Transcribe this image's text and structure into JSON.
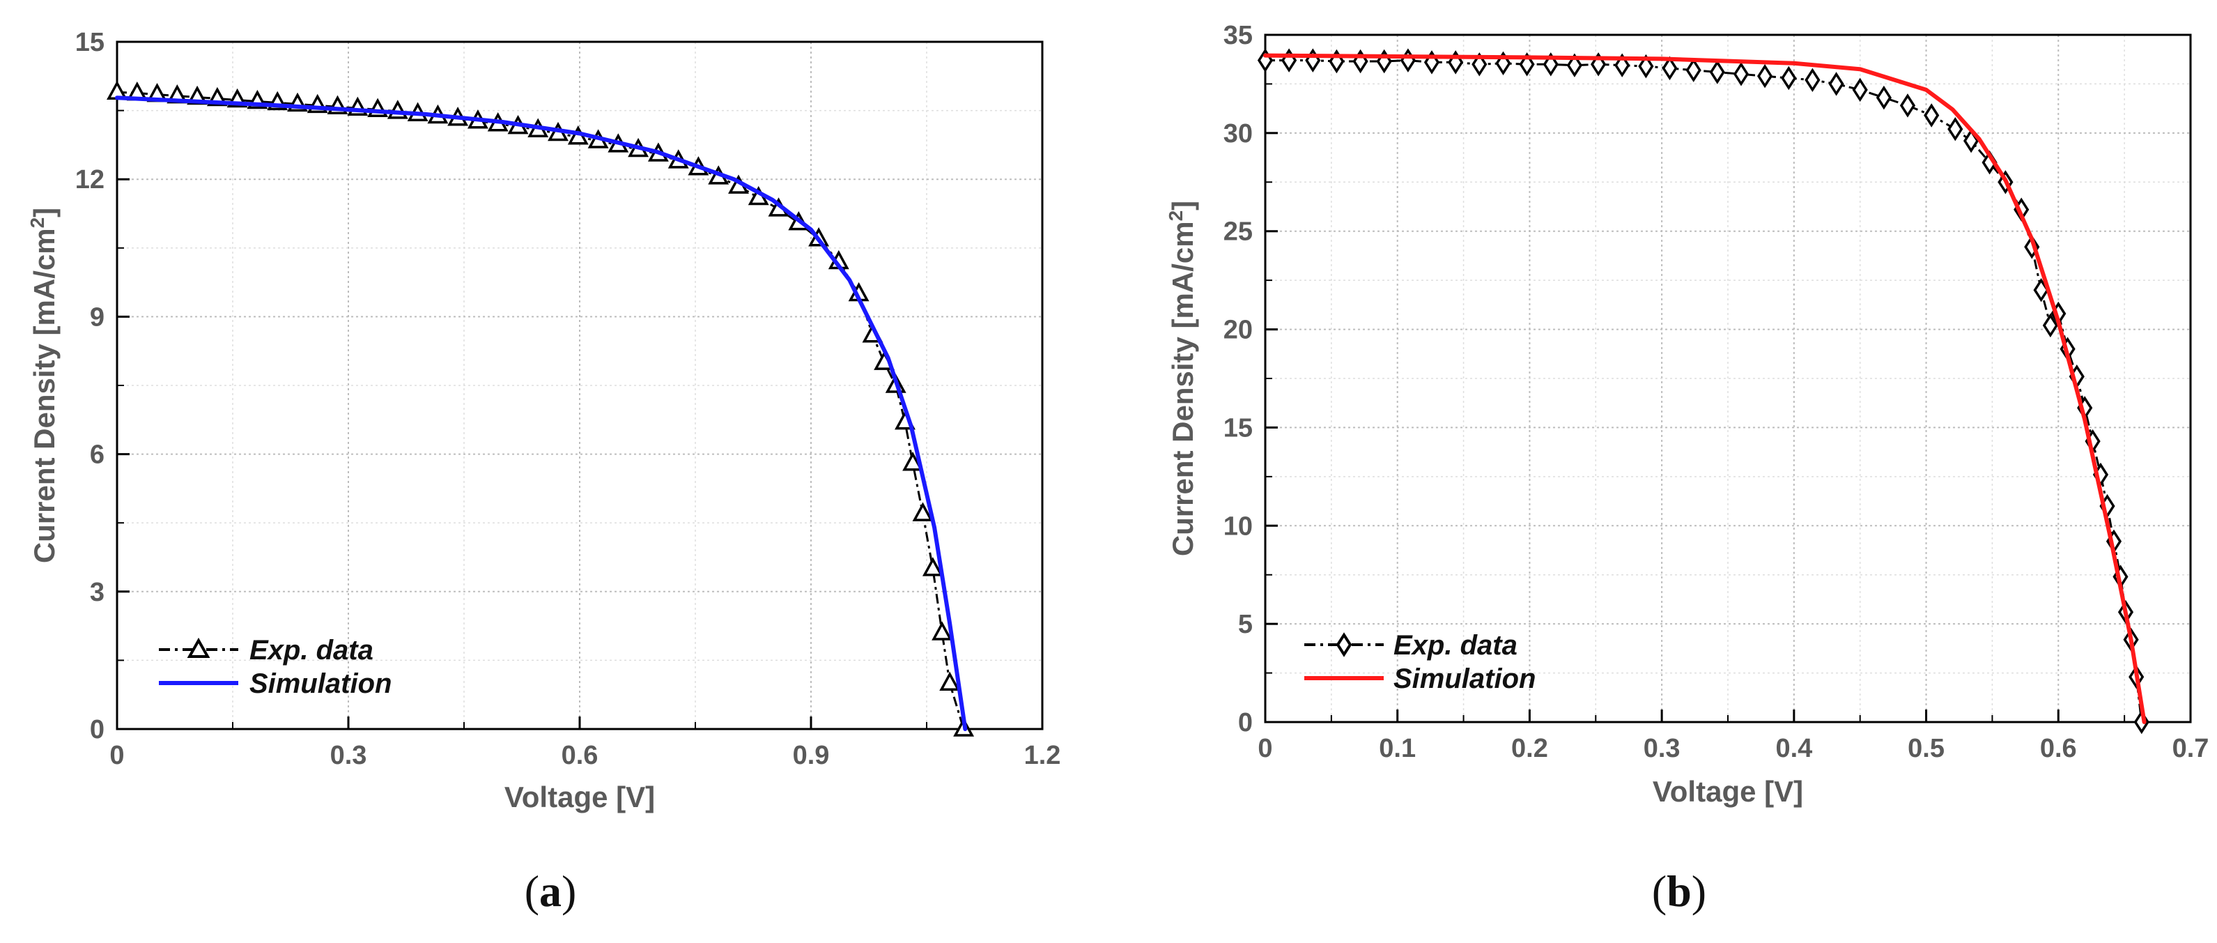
{
  "chart_data": [
    {
      "type": "line",
      "panel_label": [
        "(",
        "a",
        ")"
      ],
      "xlabel": "Voltage [V]",
      "ylabel": "Current Density [mA/cm",
      "ylabel_sup": "2",
      "ylabel_end": "]",
      "xlim": [
        0,
        1.2
      ],
      "ylim": [
        0,
        15
      ],
      "xticks": [
        "0",
        "0.3",
        "0.6",
        "0.9",
        "1.2"
      ],
      "yticks": [
        "0",
        "3",
        "6",
        "9",
        "12",
        "15"
      ],
      "grid": true,
      "legend_position": "bottom-left",
      "series": [
        {
          "name": "Exp. data",
          "style": "dash-dot with triangle markers",
          "color": "#000000",
          "marker": "triangle",
          "x": [
            0.0,
            0.026,
            0.052,
            0.078,
            0.104,
            0.13,
            0.156,
            0.182,
            0.208,
            0.234,
            0.26,
            0.286,
            0.312,
            0.338,
            0.364,
            0.39,
            0.416,
            0.442,
            0.468,
            0.494,
            0.52,
            0.546,
            0.572,
            0.598,
            0.624,
            0.65,
            0.676,
            0.702,
            0.728,
            0.754,
            0.78,
            0.806,
            0.832,
            0.858,
            0.884,
            0.91,
            0.936,
            0.962,
            0.98,
            0.995,
            1.01,
            1.022,
            1.032,
            1.045,
            1.058,
            1.07,
            1.08,
            1.098
          ],
          "y": [
            13.9,
            13.88,
            13.85,
            13.82,
            13.79,
            13.76,
            13.73,
            13.7,
            13.67,
            13.64,
            13.61,
            13.58,
            13.55,
            13.52,
            13.48,
            13.43,
            13.38,
            13.33,
            13.27,
            13.21,
            13.15,
            13.08,
            13.0,
            12.92,
            12.84,
            12.75,
            12.65,
            12.55,
            12.4,
            12.25,
            12.05,
            11.85,
            11.6,
            11.35,
            11.05,
            10.7,
            10.2,
            9.5,
            8.6,
            8.0,
            7.5,
            6.7,
            5.8,
            4.7,
            3.5,
            2.1,
            1.0,
            0.0
          ]
        },
        {
          "name": "Simulation",
          "style": "solid",
          "color": "#1a1aff",
          "x": [
            0.0,
            0.1,
            0.2,
            0.3,
            0.4,
            0.5,
            0.6,
            0.7,
            0.8,
            0.85,
            0.9,
            0.95,
            1.0,
            1.03,
            1.06,
            1.08,
            1.1
          ],
          "y": [
            13.78,
            13.7,
            13.62,
            13.52,
            13.42,
            13.25,
            13.0,
            12.6,
            12.0,
            11.55,
            10.9,
            9.8,
            8.1,
            6.6,
            4.4,
            2.3,
            0.0
          ]
        }
      ]
    },
    {
      "type": "line",
      "panel_label": [
        "(",
        "b",
        ")"
      ],
      "xlabel": "Voltage [V]",
      "ylabel": "Current Density [mA/cm",
      "ylabel_sup": "2",
      "ylabel_end": "]",
      "xlim": [
        0,
        0.7
      ],
      "ylim": [
        0,
        35
      ],
      "xticks": [
        "0",
        "0.1",
        "0.2",
        "0.3",
        "0.4",
        "0.5",
        "0.6",
        "0.7"
      ],
      "yticks": [
        "0",
        "5",
        "10",
        "15",
        "20",
        "25",
        "30",
        "35"
      ],
      "grid": true,
      "legend_position": "bottom-left",
      "series": [
        {
          "name": "Exp. data",
          "style": "dash-dot with diamond markers",
          "color": "#000000",
          "marker": "diamond",
          "x": [
            0.0,
            0.018,
            0.036,
            0.054,
            0.072,
            0.09,
            0.108,
            0.126,
            0.144,
            0.162,
            0.18,
            0.198,
            0.216,
            0.234,
            0.252,
            0.27,
            0.288,
            0.306,
            0.324,
            0.342,
            0.36,
            0.378,
            0.396,
            0.414,
            0.432,
            0.45,
            0.468,
            0.486,
            0.504,
            0.522,
            0.534,
            0.548,
            0.56,
            0.572,
            0.58,
            0.587,
            0.594,
            0.6,
            0.607,
            0.614,
            0.62,
            0.626,
            0.632,
            0.637,
            0.642,
            0.647,
            0.651,
            0.655,
            0.659,
            0.663
          ],
          "y": [
            33.7,
            33.7,
            33.7,
            33.65,
            33.65,
            33.65,
            33.7,
            33.6,
            33.6,
            33.5,
            33.55,
            33.5,
            33.5,
            33.45,
            33.5,
            33.45,
            33.4,
            33.3,
            33.2,
            33.1,
            33.0,
            32.9,
            32.8,
            32.7,
            32.5,
            32.2,
            31.8,
            31.4,
            30.9,
            30.2,
            29.6,
            28.5,
            27.5,
            26.1,
            24.2,
            22.0,
            20.2,
            20.8,
            19.0,
            17.6,
            16.0,
            14.3,
            12.6,
            11.0,
            9.2,
            7.4,
            5.6,
            4.2,
            2.3,
            0.0
          ]
        },
        {
          "name": "Simulation",
          "style": "solid",
          "color": "#ff1a1a",
          "x": [
            0.0,
            0.1,
            0.2,
            0.3,
            0.4,
            0.45,
            0.5,
            0.52,
            0.54,
            0.56,
            0.58,
            0.6,
            0.62,
            0.64,
            0.655,
            0.665
          ],
          "y": [
            33.95,
            33.9,
            33.85,
            33.78,
            33.55,
            33.25,
            32.2,
            31.2,
            29.7,
            27.6,
            24.6,
            20.4,
            15.4,
            9.2,
            4.2,
            0.0
          ]
        }
      ]
    }
  ]
}
